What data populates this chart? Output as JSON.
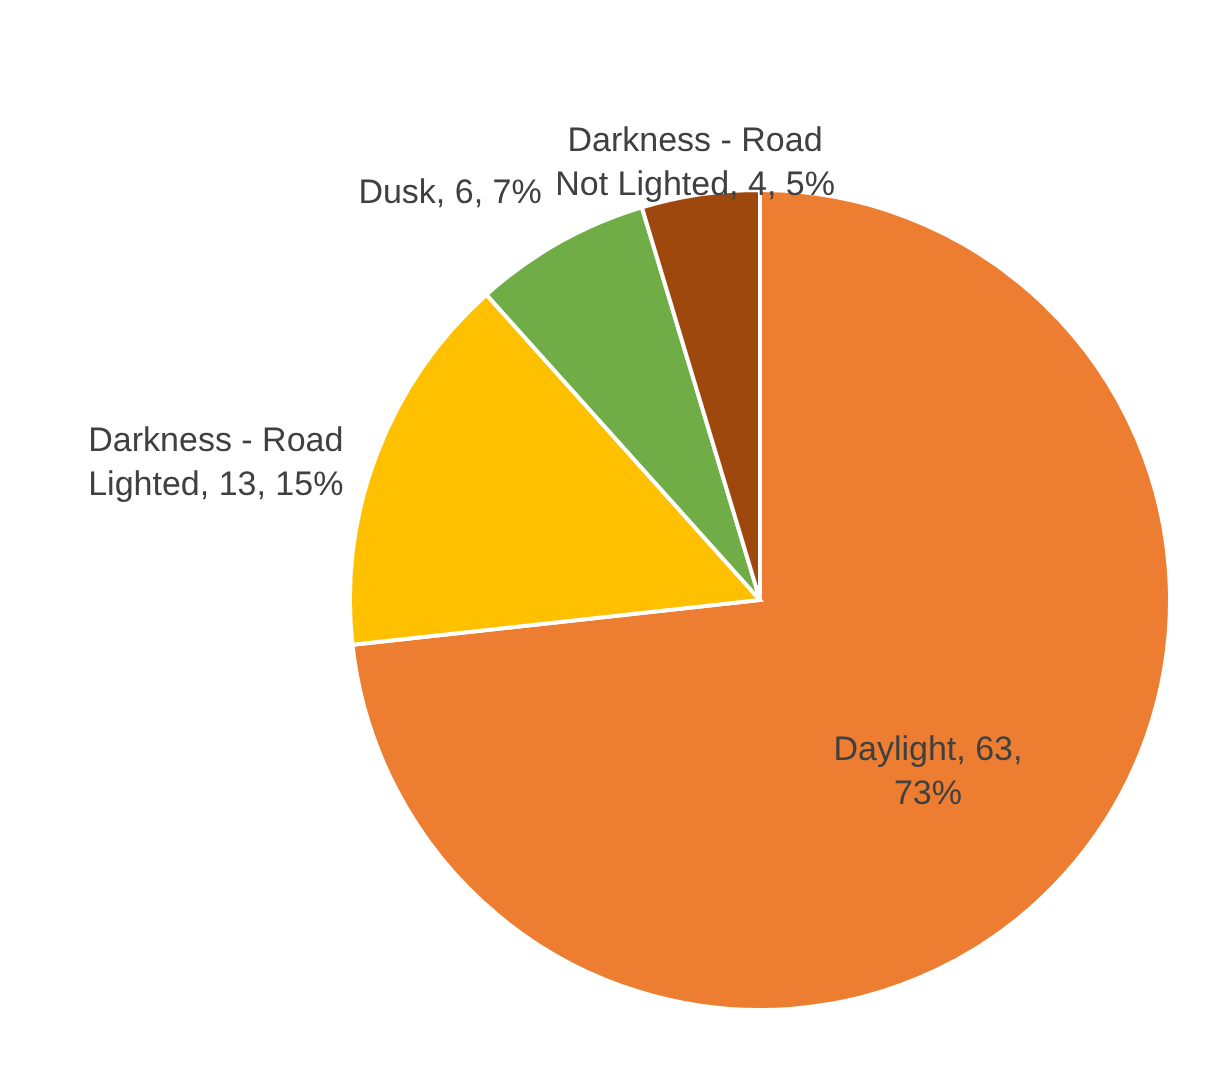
{
  "chart_data": {
    "type": "pie",
    "categories": [
      "Daylight",
      "Darkness - Road Lighted",
      "Dusk",
      "Darkness - Road Not Lighted"
    ],
    "values": [
      63,
      13,
      6,
      4
    ],
    "colors": [
      "#ed7d31",
      "#ffc000",
      "#70ad47",
      "#9e480e"
    ],
    "value_labels": [
      "63, 73%",
      "13, 15%",
      "6, 7%",
      "4, 5%"
    ]
  }
}
